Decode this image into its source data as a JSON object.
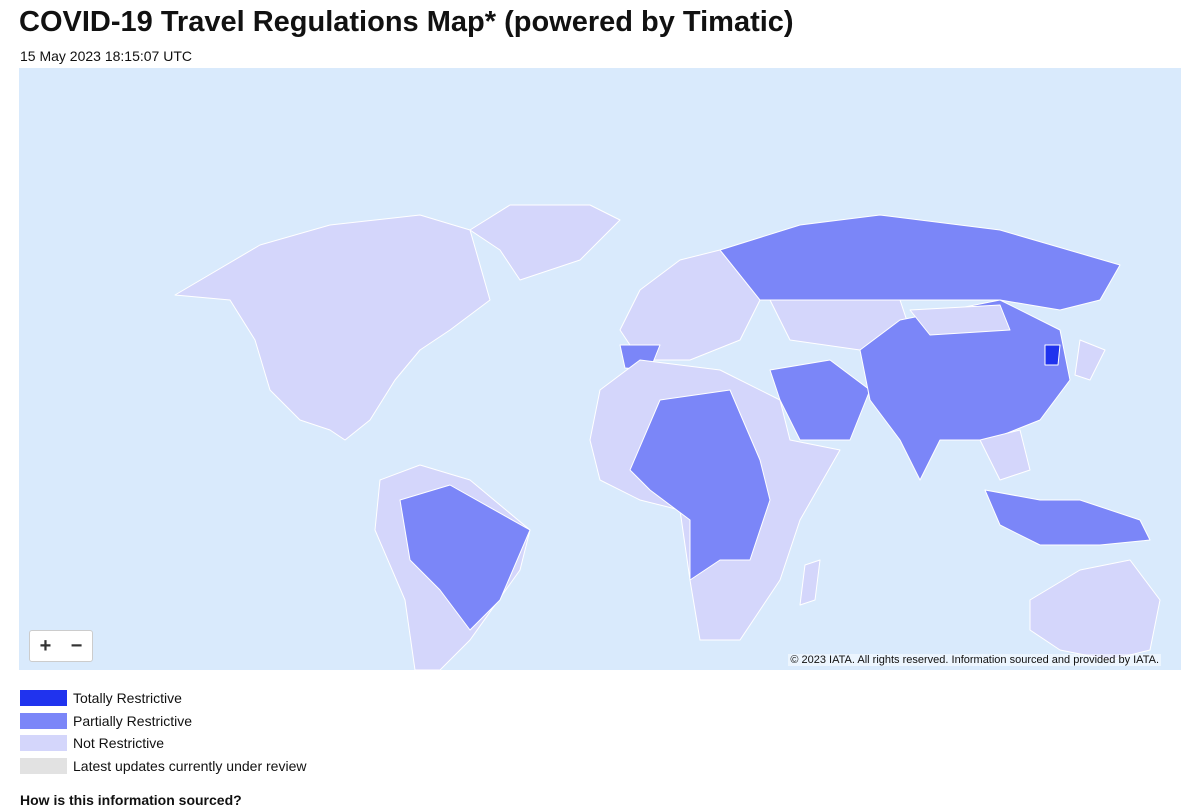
{
  "header": {
    "title": "COVID-19 Travel Regulations Map* (powered by Timatic)",
    "timestamp": "15 May 2023 18:15:07 UTC"
  },
  "map": {
    "zoom_in": "+",
    "zoom_out": "−",
    "attribution": "© 2023 IATA. All rights reserved. Information sourced and provided by IATA."
  },
  "legend": {
    "items": [
      {
        "label": "Totally Restrictive",
        "color": "#2033ee"
      },
      {
        "label": "Partially Restrictive",
        "color": "#7b86f8"
      },
      {
        "label": "Not Restrictive",
        "color": "#d4d6fb"
      },
      {
        "label": "Latest updates currently under review",
        "color": "#e2e2e2"
      }
    ]
  },
  "footer": {
    "question": "How is this information sourced?"
  }
}
